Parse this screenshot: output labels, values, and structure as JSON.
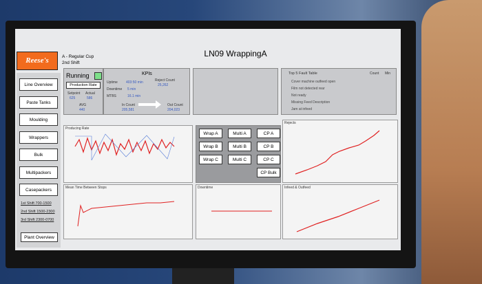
{
  "header": {
    "logo": "Reese's",
    "product": "A - Regular Cup",
    "shift": "2nd Shift",
    "title": "LN09 WrappingA"
  },
  "nav": [
    "Line Overview",
    "Paste Tanks",
    "Moulding",
    "Wrappers",
    "Bulk",
    "Multipackers",
    "Casepackers"
  ],
  "shifts": [
    "1st Shift 700-1500",
    "2nd Shift 1500-2300",
    "3rd Shift 2300-0700"
  ],
  "plant_overview": "Plant Overview",
  "status": {
    "state": "Running",
    "rate_title": "Production Rate",
    "setpoint_label": "Setpoint",
    "setpoint": "625",
    "actual_label": "Actual",
    "actual": "586",
    "avg_label": "AVG",
    "avg": "440"
  },
  "kpis": {
    "title": "KPIs",
    "uptime_label": "Uptime",
    "uptime": "403:50 min",
    "downtime_label": "Downtime",
    "downtime": "5 min",
    "mtbs_label": "MTBS",
    "mtbs": "16.1 min",
    "reject_label": "Reject Count",
    "reject": "25,262",
    "in_label": "In Count",
    "in": "205,581",
    "out_label": "Out Count",
    "out": "204,023"
  },
  "faults": {
    "title": "Top 5 Fault Table",
    "count_header": "Count",
    "min_header": "Min",
    "rows": [
      "Cover machine outfeed open",
      "Film not detected rear",
      "Not ready",
      "Missing Feed Description",
      "Jam at infeed"
    ]
  },
  "machines": [
    "Wrap A",
    "Multi A",
    "CP A",
    "Wrap B",
    "Multi B",
    "CP B",
    "Wrap C",
    "Multi C",
    "CP C",
    "CP Bulk"
  ],
  "charts": [
    "Producing Rate",
    "Rejects",
    "Mean Time Between Stops",
    "Downtime",
    "Infeed & Outfeed"
  ]
}
